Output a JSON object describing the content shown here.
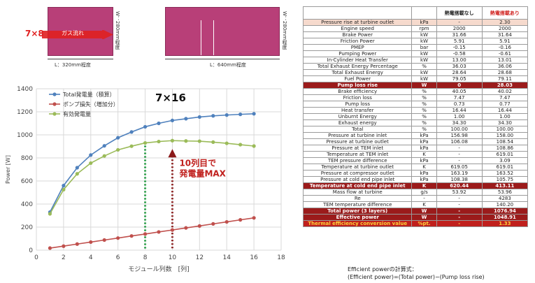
{
  "diagrams": {
    "module_7x8": {
      "grid_label": "7×8",
      "flow_label": "ガス流れ",
      "length_label": "L：320mm程度",
      "width_label": "W：280mm程度"
    },
    "module_7x16": {
      "length_label": "L：640mm程度",
      "width_label": "W：280mm程度"
    }
  },
  "chart_data": {
    "type": "line",
    "title": "7×16",
    "xlabel": "モジュール列数　[列]",
    "ylabel": "Power [W]",
    "xlim": [
      0,
      18
    ],
    "ylim": [
      0,
      1400
    ],
    "xticks": [
      0,
      2,
      4,
      6,
      8,
      10,
      12,
      14,
      16,
      18
    ],
    "yticks": [
      0,
      200,
      400,
      600,
      800,
      1000,
      1200,
      1400
    ],
    "grid": true,
    "legend_position": "top-left",
    "x": [
      1,
      2,
      3,
      4,
      5,
      6,
      7,
      8,
      9,
      10,
      11,
      12,
      13,
      14,
      15,
      16
    ],
    "series": [
      {
        "name": "Total発電量（積算）",
        "color": "#4f81bd",
        "values": [
          330,
          560,
          715,
          825,
          905,
          975,
          1025,
          1070,
          1100,
          1125,
          1140,
          1155,
          1165,
          1172,
          1178,
          1183
        ]
      },
      {
        "name": "ポンプ損失（増加分）",
        "color": "#c0504d",
        "values": [
          18,
          35,
          53,
          70,
          88,
          105,
          123,
          140,
          158,
          175,
          193,
          210,
          228,
          245,
          263,
          280
        ]
      },
      {
        "name": "有効発電量",
        "color": "#9bbb59",
        "values": [
          315,
          525,
          662,
          755,
          817,
          870,
          902,
          930,
          942,
          950,
          947,
          945,
          937,
          927,
          915,
          903
        ]
      }
    ],
    "annotations": [
      {
        "text": "10列目で\n発電量MAX",
        "color": "#c0201d",
        "x": 10,
        "y": 950
      },
      {
        "text": "",
        "color": "#1a9a3a",
        "x": 8,
        "y": 930
      }
    ]
  },
  "table": {
    "header": {
      "col3": "熱電搭載なし",
      "col4": "熱電搭載あり"
    },
    "rows": [
      {
        "label": "Pressure rise at turbine outlet",
        "unit": "kPa",
        "v1": "-",
        "v2": "2.30",
        "style": "hl-head"
      },
      {
        "label": "Engine speed",
        "unit": "rpm",
        "v1": "2000",
        "v2": "2000",
        "style": ""
      },
      {
        "label": "Brake Power",
        "unit": "kW",
        "v1": "31.66",
        "v2": "31.64",
        "style": ""
      },
      {
        "label": "Friction Power",
        "unit": "kW",
        "v1": "5.91",
        "v2": "5.91",
        "style": ""
      },
      {
        "label": "PMEP",
        "unit": "bar",
        "v1": "-0.15",
        "v2": "-0.16",
        "style": ""
      },
      {
        "label": "Pumping Power",
        "unit": "kW",
        "v1": "-0.58",
        "v2": "-0.61",
        "style": ""
      },
      {
        "label": "In-Cylinder Heat Transfer",
        "unit": "kW",
        "v1": "13.00",
        "v2": "13.01",
        "style": ""
      },
      {
        "label": "Total Exhaust Energy Percentage",
        "unit": "%",
        "v1": "36.03",
        "v2": "36.06",
        "style": ""
      },
      {
        "label": "Total Exhaust Energy",
        "unit": "kW",
        "v1": "28.64",
        "v2": "28.68",
        "style": ""
      },
      {
        "label": "Fuel Power",
        "unit": "kW",
        "v1": "79.05",
        "v2": "79.11",
        "style": ""
      },
      {
        "label": "Pump loss rise",
        "unit": "W",
        "v1": "0",
        "v2": "28.03",
        "style": "hl-dark"
      },
      {
        "label": "Brake efficiency",
        "unit": "%",
        "v1": "40.05",
        "v2": "40.02",
        "style": ""
      },
      {
        "label": "Friction loss",
        "unit": "%",
        "v1": "7.47",
        "v2": "7.47",
        "style": ""
      },
      {
        "label": "Pump loss",
        "unit": "%",
        "v1": "0.73",
        "v2": "0.77",
        "style": ""
      },
      {
        "label": "Heat transfer",
        "unit": "%",
        "v1": "16.44",
        "v2": "16.44",
        "style": ""
      },
      {
        "label": "Unburnt Energy",
        "unit": "%",
        "v1": "1.00",
        "v2": "1.00",
        "style": ""
      },
      {
        "label": "Exhaust energy",
        "unit": "%",
        "v1": "34.30",
        "v2": "34.30",
        "style": ""
      },
      {
        "label": "Total",
        "unit": "%",
        "v1": "100.00",
        "v2": "100.00",
        "style": ""
      },
      {
        "label": "Pressure at turbine inlet",
        "unit": "kPa",
        "v1": "156.98",
        "v2": "158.00",
        "style": ""
      },
      {
        "label": "Pressure at turbine outlet",
        "unit": "kPa",
        "v1": "106.08",
        "v2": "108.54",
        "style": ""
      },
      {
        "label": "Pressure at TEM inlet",
        "unit": "kPa",
        "v1": "-",
        "v2": "108.86",
        "style": ""
      },
      {
        "label": "Temperature at TEM inlet",
        "unit": "K",
        "v1": "-",
        "v2": "619.01",
        "style": ""
      },
      {
        "label": "TEM pressure difference",
        "unit": "kPa",
        "v1": "-",
        "v2": "3.09",
        "style": ""
      },
      {
        "label": "Temperature at turbine outlet",
        "unit": "K",
        "v1": "619.05",
        "v2": "619.01",
        "style": ""
      },
      {
        "label": "Pressure at compressor outlet",
        "unit": "kPa",
        "v1": "163.19",
        "v2": "163.52",
        "style": ""
      },
      {
        "label": "Pressure at cold end pipe inlet",
        "unit": "kPa",
        "v1": "108.38",
        "v2": "105.75",
        "style": ""
      },
      {
        "label": "Temperature at cold end pipe inlet",
        "unit": "K",
        "v1": "620.44",
        "v2": "413.11",
        "style": "hl-dark"
      },
      {
        "label": "Mass flow at turbine",
        "unit": "g/s",
        "v1": "53.92",
        "v2": "53.96",
        "style": ""
      },
      {
        "label": "Re",
        "unit": "-",
        "v1": "-",
        "v2": "4283",
        "style": ""
      },
      {
        "label": "TEM temperature difference",
        "unit": "K",
        "v1": "-",
        "v2": "140.20",
        "style": ""
      },
      {
        "label": "Total power (3 layers)",
        "unit": "W",
        "v1": "-",
        "v2": "1076.94",
        "style": "hl-dark"
      },
      {
        "label": "Effective power",
        "unit": "W",
        "v1": "-",
        "v2": "1048.91",
        "style": "hl-dark"
      },
      {
        "label": "Thermal efficiency conversion value",
        "unit": "%pt.",
        "v1": "-",
        "v2": "1.33",
        "style": "hl-last"
      }
    ]
  },
  "formula": {
    "line1": "Efficient powerの計算式：",
    "line2": "(Efficient power)=(Total power)−(Pump loss rise)"
  }
}
